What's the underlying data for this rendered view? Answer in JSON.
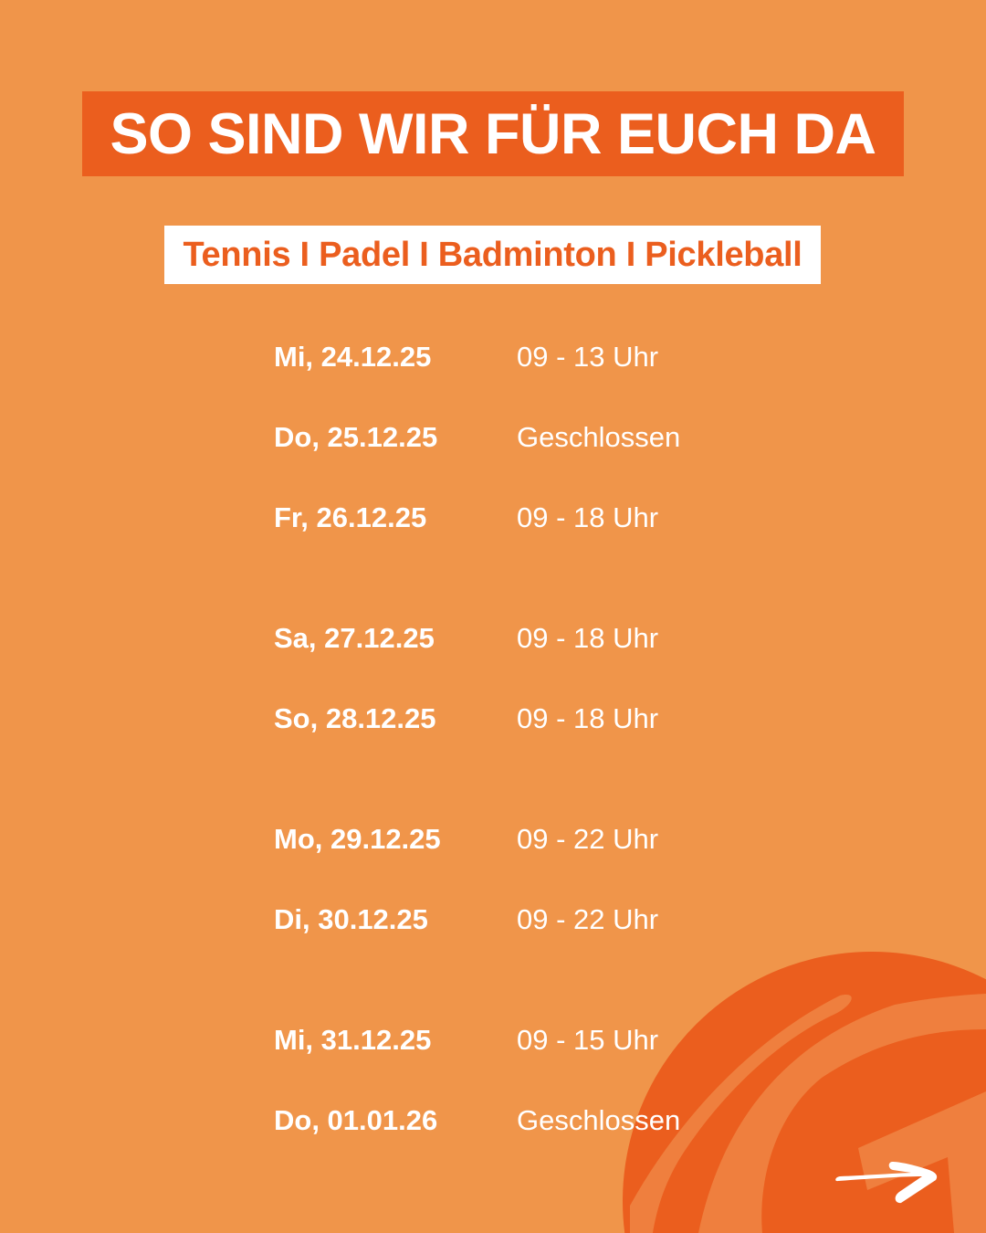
{
  "header": {
    "title": "SO SIND WIR FÜR EUCH DA",
    "subtitle": "Tennis I Padel I Badminton I Pickleball"
  },
  "schedule": [
    {
      "date": "Mi, 24.12.25",
      "hours": "09 - 13 Uhr"
    },
    {
      "date": "Do, 25.12.25",
      "hours": "Geschlossen"
    },
    {
      "date": "Fr, 26.12.25",
      "hours": "09 - 18 Uhr"
    },
    {
      "date": "Sa, 27.12.25",
      "hours": "09 - 18 Uhr"
    },
    {
      "date": "So, 28.12.25",
      "hours": "09 - 18 Uhr"
    },
    {
      "date": "Mo, 29.12.25",
      "hours": "09 - 22 Uhr"
    },
    {
      "date": "Di, 30.12.25",
      "hours": "09 - 22 Uhr"
    },
    {
      "date": "Mi, 31.12.25",
      "hours": "09 - 15 Uhr"
    },
    {
      "date": "Do, 01.01.26",
      "hours": "Geschlossen"
    }
  ],
  "colors": {
    "background": "#F0954A",
    "accent": "#EB5E1E",
    "stripe": "#EF7F3E",
    "text": "#FFFFFF"
  },
  "decor": {
    "ball_icon": "ball-icon",
    "arrow_icon": "arrow-right-icon"
  }
}
